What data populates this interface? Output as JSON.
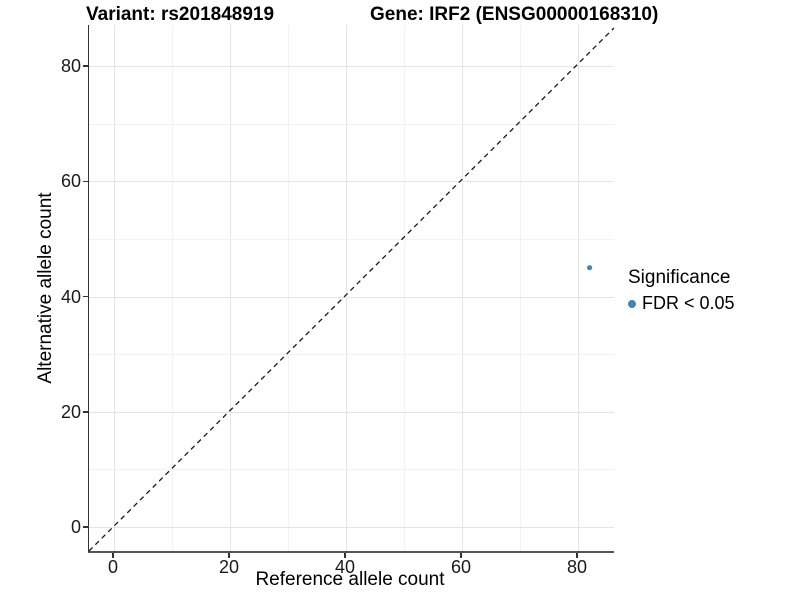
{
  "header": {
    "variant_title": "Variant: rs201848919",
    "gene_title": "Gene: IRF2 (ENSG00000168310)"
  },
  "axes": {
    "x_label": "Reference allele count",
    "y_label": "Alternative allele count"
  },
  "legend": {
    "title": "Significance",
    "items": [
      {
        "label": "FDR < 0.05",
        "color": "#4682B4",
        "shape": "circle"
      }
    ]
  },
  "colors": {
    "point": "#4682B4",
    "grid_major": "#e4e4e4",
    "grid_minor": "#f2f2f2",
    "axis_line": "#333333",
    "dashed_line": "#1a1a1a",
    "tick_text": "#1a1a1a"
  },
  "chart_data": {
    "type": "scatter",
    "title": "Variant: rs201848919   Gene: IRF2 (ENSG00000168310)",
    "xlabel": "Reference allele count",
    "ylabel": "Alternative allele count",
    "x_ticks": [
      0,
      20,
      40,
      60,
      80
    ],
    "y_ticks": [
      0,
      20,
      40,
      60,
      80
    ],
    "xlim": [
      -4.5,
      86.5
    ],
    "ylim": [
      -4.5,
      87
    ],
    "grid": true,
    "legend_position": "right",
    "series": [
      {
        "name": "FDR < 0.05",
        "color": "#4682B4",
        "points": [
          {
            "x": 82,
            "y": 45
          }
        ]
      }
    ],
    "reference_line": {
      "type": "identity_y_equals_x",
      "style": "dashed",
      "color": "#1a1a1a"
    }
  }
}
